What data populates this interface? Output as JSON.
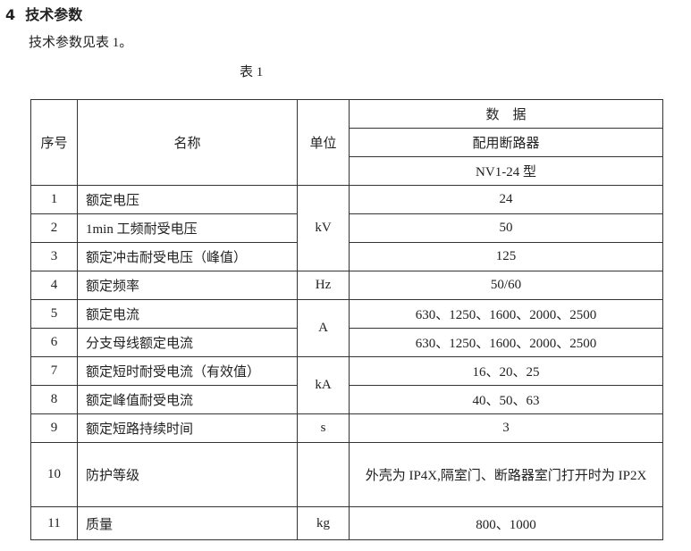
{
  "section": {
    "number": "4",
    "title": "技术参数"
  },
  "intro": "技术参数见表 1。",
  "caption": "表 1",
  "table": {
    "headers": {
      "index": "序号",
      "name": "名称",
      "unit": "单位",
      "data": "数　据",
      "sub": "配用断路器",
      "model": "NV1-24 型"
    },
    "rows": [
      {
        "index": "1",
        "name": "额定电压",
        "value": "24"
      },
      {
        "index": "2",
        "name": "1min 工频耐受电压",
        "value": "50"
      },
      {
        "index": "3",
        "name": "额定冲击耐受电压（峰值）",
        "value": "125"
      },
      {
        "index": "4",
        "name": "额定频率",
        "unit": "Hz",
        "value": "50/60"
      },
      {
        "index": "5",
        "name": "额定电流",
        "value": "630、1250、1600、2000、2500"
      },
      {
        "index": "6",
        "name": "分支母线额定电流",
        "value": "630、1250、1600、2000、2500"
      },
      {
        "index": "7",
        "name": "额定短时耐受电流（有效值）",
        "value": "16、20、25"
      },
      {
        "index": "8",
        "name": "额定峰值耐受电流",
        "value": "40、50、63"
      },
      {
        "index": "9",
        "name": "额定短路持续时间",
        "unit": "s",
        "value": "3"
      },
      {
        "index": "10",
        "name": "防护等级",
        "unit": "",
        "value": "外壳为 IP4X,隔室门、断路器室门打开时为 IP2X"
      },
      {
        "index": "11",
        "name": "质量",
        "unit": "kg",
        "value": "800、1000"
      }
    ],
    "merged_units": {
      "voltage": "kV",
      "current": "A",
      "ka": "kA"
    }
  }
}
